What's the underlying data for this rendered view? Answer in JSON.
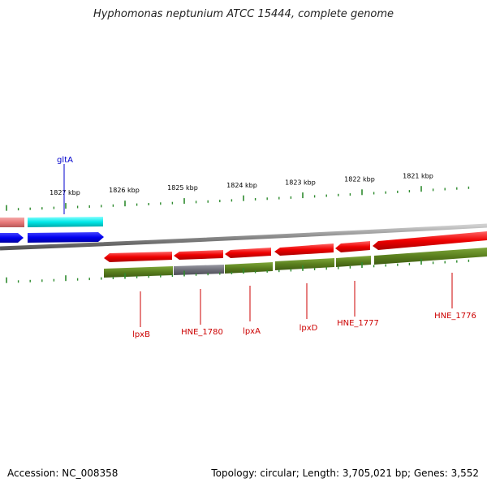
{
  "title": "Hyphomonas neptunium ATCC 15444, complete genome",
  "footer": {
    "accession": "Accession: NC_008358",
    "topology": "Topology: circular; Length: 3,705,021 bp; Genes: 3,552"
  },
  "colors": {
    "forward_gene": "#0000ee",
    "forward_gene_light": "#00e8e8",
    "forward_gene_pink": "#e87878",
    "reverse_gene": "#ee0000",
    "reverse_cds": "#5a7f1e",
    "reverse_cds_gray": "#6e6e78",
    "backbone": "#8a8a8a",
    "ticks": "#2e8b2e",
    "label_blue": "#0000cc",
    "label_red": "#cc0000"
  },
  "scale": {
    "labels": [
      "1827 kbp",
      "1826 kbp",
      "1825 kbp",
      "1824 kbp",
      "1823 kbp",
      "1822 kbp",
      "1821 kbp"
    ]
  },
  "gene_labels_forward": [
    "gltA"
  ],
  "gene_labels_reverse": [
    "lpxB",
    "HNE_1780",
    "lpxA",
    "lpxD",
    "HNE_1777",
    "HNE_1776"
  ]
}
